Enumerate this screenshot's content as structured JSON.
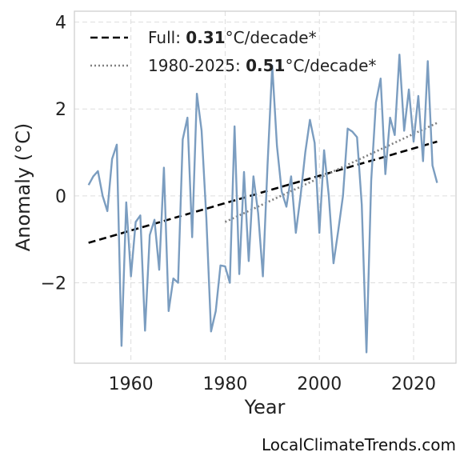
{
  "chart_data": {
    "type": "line",
    "xlabel": "Year",
    "ylabel": "Anomaly (°C)",
    "xlim": [
      1948,
      2029
    ],
    "ylim": [
      -3.85,
      4.25
    ],
    "xticks": [
      1960,
      1980,
      2000,
      2020
    ],
    "yticks": [
      4,
      2,
      0,
      -2
    ],
    "ytick_labels": [
      "4",
      "2",
      "0",
      "−2"
    ],
    "grid": true,
    "legend_position": "top-left",
    "colors": {
      "series": "#7b9dc0",
      "full_trend": "#000000",
      "recent_trend": "#808080"
    },
    "legend": {
      "full": {
        "prefix": "Full: ",
        "value": "0.31",
        "suffix": "°C/decade*"
      },
      "recent": {
        "prefix": "1980-2025: ",
        "value": "0.51",
        "suffix": "°C/decade*"
      }
    },
    "series": [
      {
        "x": [
          1951,
          1952,
          1953,
          1954,
          1955,
          1956,
          1957,
          1958,
          1959,
          1960,
          1961,
          1962,
          1963,
          1964,
          1965,
          1966,
          1967,
          1968,
          1969,
          1970,
          1971,
          1972,
          1973,
          1974,
          1975,
          1976,
          1977,
          1978,
          1979,
          1980,
          1981,
          1982,
          1983,
          1984,
          1985,
          1986,
          1987,
          1988,
          1989,
          1990,
          1991,
          1992,
          1993,
          1994,
          1995,
          1996,
          1997,
          1998,
          1999,
          2000,
          2001,
          2002,
          2003,
          2004,
          2005,
          2006,
          2007,
          2008,
          2009,
          2010,
          2011,
          2012,
          2013,
          2014,
          2015,
          2016,
          2017,
          2018,
          2019,
          2020,
          2021,
          2022,
          2023,
          2024,
          2025
        ],
        "y": [
          0.25,
          0.45,
          0.57,
          0.0,
          -0.35,
          0.85,
          1.18,
          -3.45,
          -0.15,
          -1.85,
          -0.6,
          -0.45,
          -3.1,
          -0.9,
          -0.55,
          -1.7,
          0.65,
          -2.65,
          -1.9,
          -2.0,
          1.3,
          1.8,
          -0.95,
          2.35,
          1.5,
          -0.5,
          -3.12,
          -2.65,
          -1.6,
          -1.62,
          -2.0,
          1.6,
          -1.8,
          0.55,
          -1.5,
          0.45,
          -0.4,
          -1.85,
          0.7,
          3.0,
          1.15,
          0.1,
          -0.25,
          0.45,
          -0.85,
          0.0,
          1.0,
          1.75,
          1.22,
          -0.85,
          1.05,
          0.0,
          -1.55,
          -0.8,
          0.0,
          1.55,
          1.48,
          1.35,
          -0.2,
          -3.6,
          0.35,
          2.15,
          2.7,
          0.5,
          1.8,
          1.4,
          3.25,
          1.5,
          2.45,
          1.25,
          2.3,
          0.8,
          3.1,
          0.7,
          0.3
        ]
      }
    ],
    "trend_lines": [
      {
        "label": "Full",
        "x": [
          1951,
          2025
        ],
        "y": [
          -1.08,
          1.25
        ]
      },
      {
        "label": "1980-2025",
        "x": [
          1980,
          2025
        ],
        "y": [
          -0.6,
          1.68
        ]
      }
    ]
  },
  "watermark": "LocalClimateTrends.com"
}
